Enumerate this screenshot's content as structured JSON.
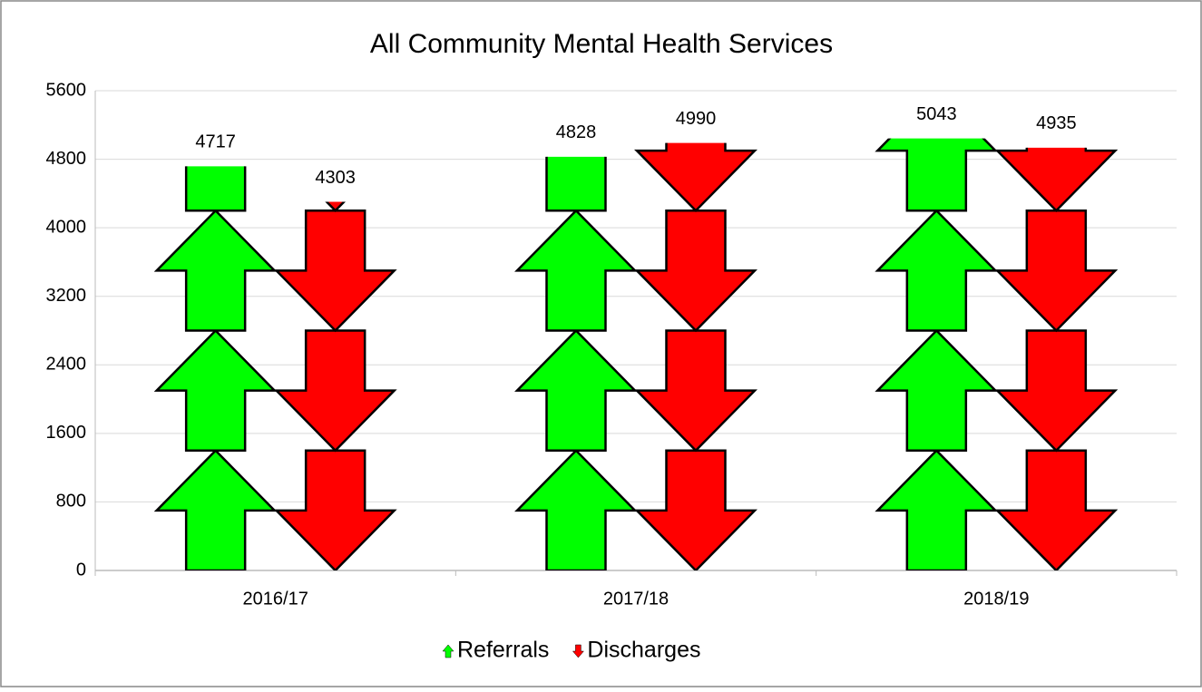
{
  "chart_data": {
    "type": "pictograph-bar",
    "title": "All Community Mental Health Services",
    "categories": [
      "2016/17",
      "2017/18",
      "2018/19"
    ],
    "series": [
      {
        "name": "Referrals",
        "color": "#00ff00",
        "marker": "arrow-up",
        "values": [
          4717,
          4828,
          5043
        ]
      },
      {
        "name": "Discharges",
        "color": "#ff0000",
        "marker": "arrow-down",
        "values": [
          4303,
          4990,
          4935
        ]
      }
    ],
    "ylim": [
      0,
      5600
    ],
    "yticks": [
      0,
      800,
      1600,
      2400,
      3200,
      4000,
      4800,
      5600
    ],
    "grid": true,
    "legend": "bottom"
  }
}
